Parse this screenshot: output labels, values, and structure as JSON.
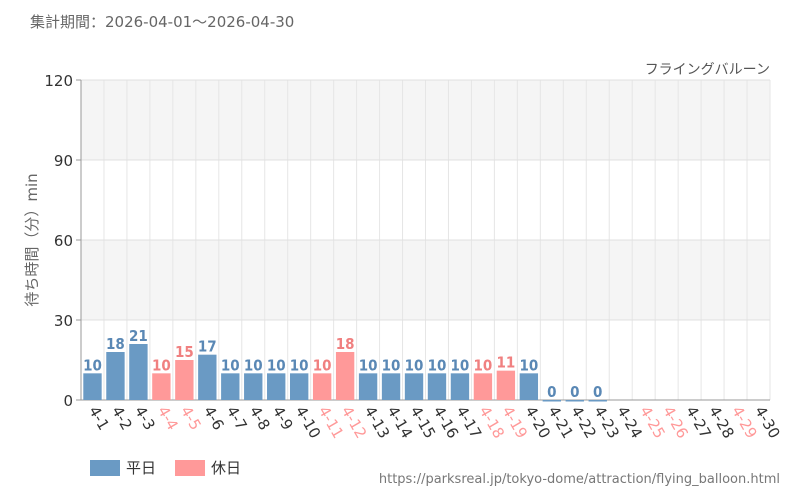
{
  "period": "集計期間：2026-04-01～2026-04-30",
  "attraction": "フライングバルーン",
  "source": "https://parksreal.jp/tokyo-dome/attraction/flying_balloon.html",
  "colors": {
    "weekday": "#6a9ac4",
    "holiday": "#ff9999",
    "weekday_label": "#5a88b5",
    "holiday_label": "#f08080",
    "axis_text": "#333333"
  },
  "chart_data": {
    "type": "bar",
    "ylabel": "待ち時間（分）min",
    "ylim": [
      0,
      120
    ],
    "yticks": [
      0,
      30,
      60,
      90,
      120
    ],
    "grid": true,
    "legend_placement": "bottom-left",
    "categories": [
      "4-1",
      "4-2",
      "4-3",
      "4-4",
      "4-5",
      "4-6",
      "4-7",
      "4-8",
      "4-9",
      "4-10",
      "4-11",
      "4-12",
      "4-13",
      "4-14",
      "4-15",
      "4-16",
      "4-17",
      "4-18",
      "4-19",
      "4-20",
      "4-21",
      "4-22",
      "4-23",
      "4-24",
      "4-25",
      "4-26",
      "4-27",
      "4-28",
      "4-29",
      "4-30"
    ],
    "values": [
      10,
      18,
      21,
      10,
      15,
      17,
      10,
      10,
      10,
      10,
      10,
      18,
      10,
      10,
      10,
      10,
      10,
      10,
      11,
      10,
      0,
      0,
      0,
      null,
      null,
      null,
      null,
      null,
      null,
      null
    ],
    "day_type": [
      "weekday",
      "weekday",
      "weekday",
      "holiday",
      "holiday",
      "weekday",
      "weekday",
      "weekday",
      "weekday",
      "weekday",
      "holiday",
      "holiday",
      "weekday",
      "weekday",
      "weekday",
      "weekday",
      "weekday",
      "holiday",
      "holiday",
      "weekday",
      "weekday",
      "weekday",
      "weekday",
      "weekday",
      "holiday",
      "holiday",
      "weekday",
      "weekday",
      "holiday",
      "weekday"
    ],
    "series": [
      {
        "name": "平日",
        "color": "#6a9ac4"
      },
      {
        "name": "休日",
        "color": "#ff9999"
      }
    ]
  }
}
